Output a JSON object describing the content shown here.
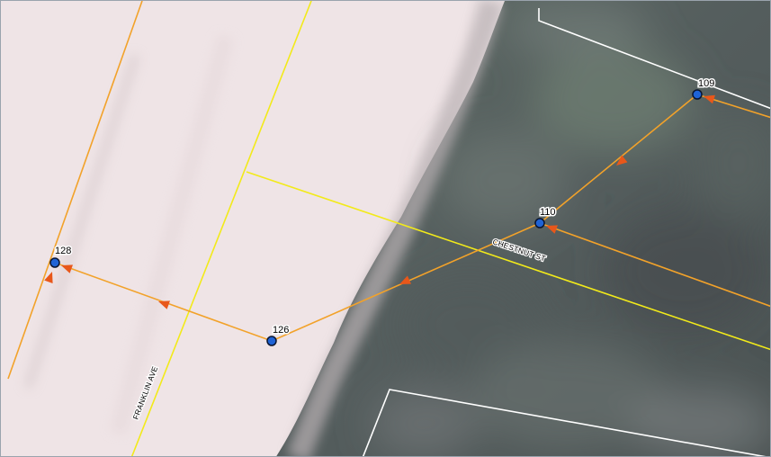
{
  "map": {
    "imagery": {
      "colors": {
        "urban_light": "#f2e7e9",
        "urban_mid": "#e7dcde",
        "vegetation_dark": "#4d5656",
        "vegetation_mid": "#6a746f",
        "vegetation_green": "#6f8074"
      }
    },
    "streets": [
      {
        "name": "CHESTNUT ST",
        "color": "#f2ea1a"
      },
      {
        "name": "FRANKLIN AVE",
        "color": "#f2ea1a"
      }
    ],
    "flow_line_color": "#f2a22a",
    "flow_arrow_color": "#e8571a",
    "node_fill": "#1f63d6",
    "node_stroke": "#0a1530",
    "parcel_line_color": "#ffffff",
    "nodes": [
      {
        "id": "109",
        "label": "109"
      },
      {
        "id": "110",
        "label": "110"
      },
      {
        "id": "126",
        "label": "126"
      },
      {
        "id": "128",
        "label": "128"
      }
    ]
  }
}
